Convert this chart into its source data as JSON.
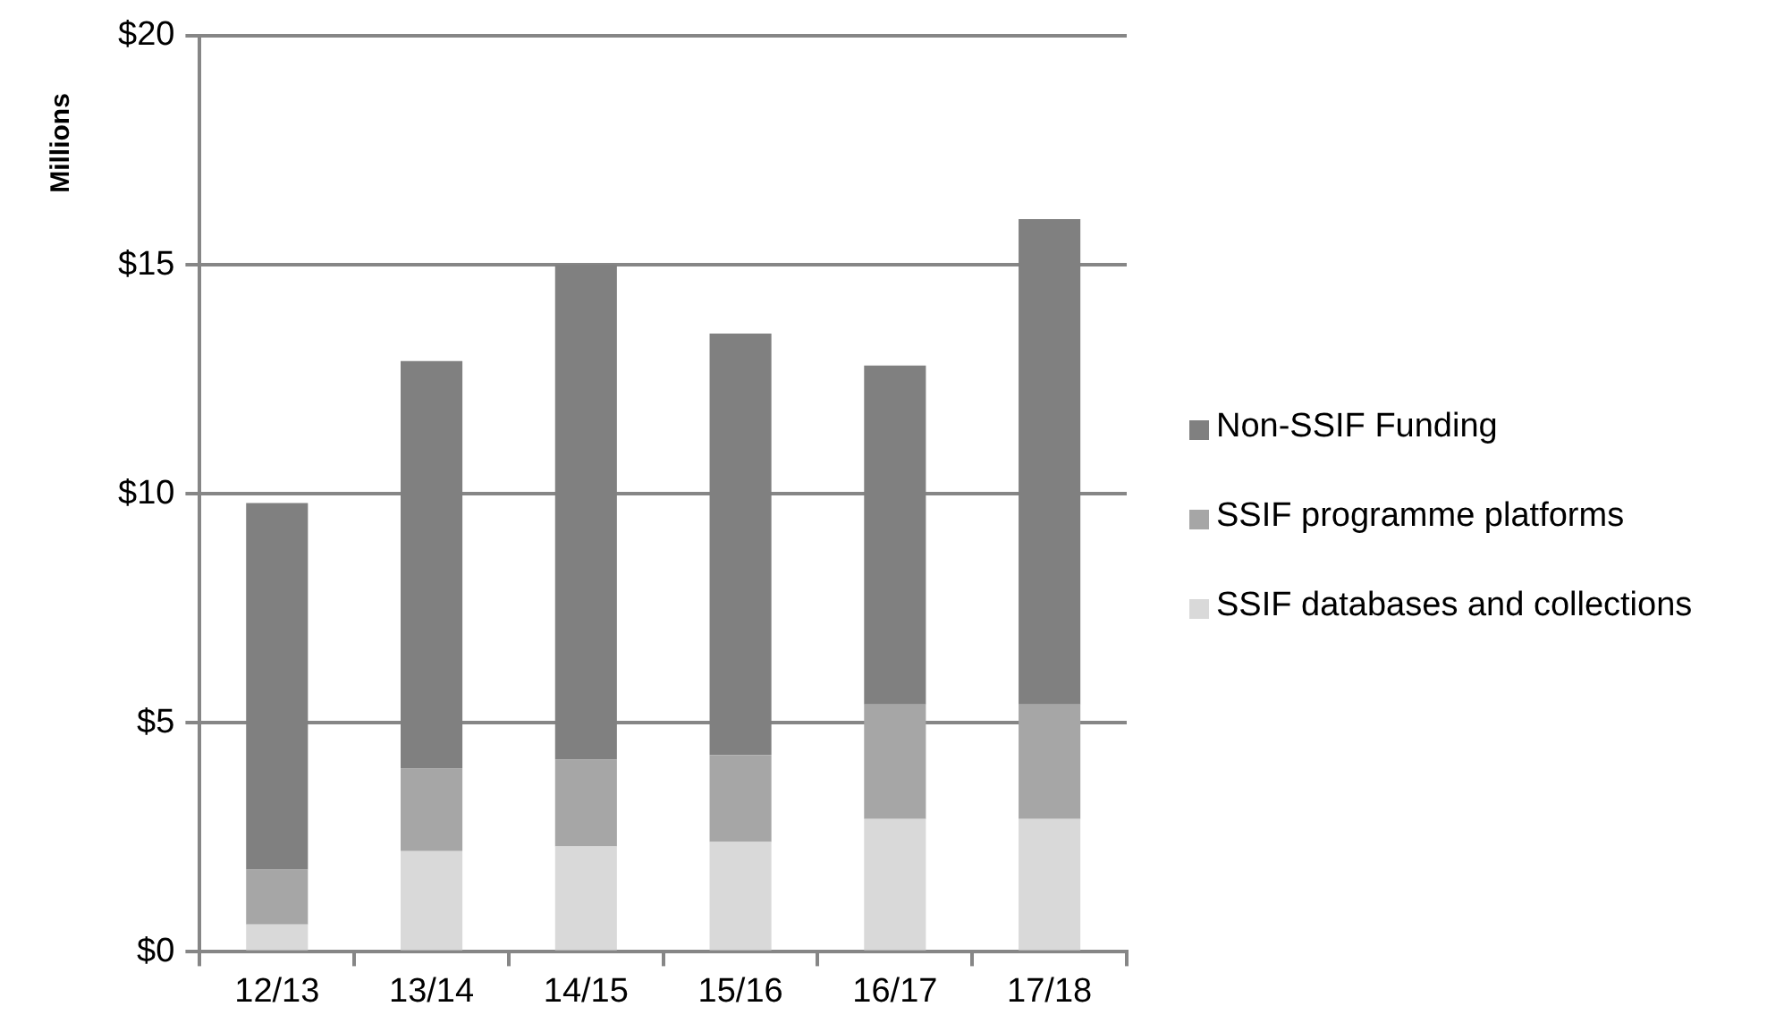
{
  "chart_data": {
    "type": "bar",
    "ylabel": "Millions",
    "stacked": true,
    "categories": [
      "12/13",
      "13/14",
      "14/15",
      "15/16",
      "16/17",
      "17/18"
    ],
    "series": [
      {
        "name": "SSIF databases and collections",
        "color": "#d9d9d9",
        "values": [
          0.6,
          2.2,
          2.3,
          2.4,
          2.9,
          2.9
        ]
      },
      {
        "name": "SSIF programme platforms",
        "color": "#a6a6a6",
        "values": [
          1.2,
          1.8,
          1.9,
          1.9,
          2.5,
          2.5
        ]
      },
      {
        "name": "Non-SSIF Funding",
        "color": "#808080",
        "values": [
          8.0,
          8.9,
          10.8,
          9.2,
          7.4,
          10.6
        ]
      }
    ],
    "ylim": [
      0,
      20
    ],
    "yticks": [
      {
        "value": 0,
        "label": "$0"
      },
      {
        "value": 5,
        "label": "$5"
      },
      {
        "value": 10,
        "label": "$10"
      },
      {
        "value": 15,
        "label": "$15"
      },
      {
        "value": 20,
        "label": "$20"
      }
    ],
    "grid": "y",
    "legend": "right"
  }
}
